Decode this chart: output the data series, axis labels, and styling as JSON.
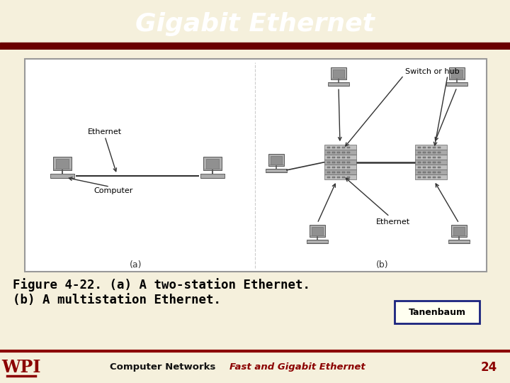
{
  "title": "Gigabit Ethernet",
  "title_bg": "#8B0000",
  "title_color": "#FFFFFF",
  "slide_bg": "#F5F0DC",
  "diagram_bg": "#F0EEE8",
  "diagram_inner_bg": "#FFFFFF",
  "caption_line1": "Figure 4-22. (a) A two-station Ethernet.",
  "caption_line2": "(b) A multistation Ethernet.",
  "caption_color": "#000000",
  "tanenbaum_text": "Tanenbaum",
  "tanenbaum_border": "#1A237E",
  "tanenbaum_bg": "#FFFFF0",
  "footer_bg": "#C0C0C0",
  "footer_text1": "Computer Networks",
  "footer_text2": "Fast and Gigabit Ethernet",
  "footer_text1_color": "#111111",
  "footer_text2_color": "#8B0000",
  "footer_num": "24",
  "footer_num_color": "#8B0000",
  "wpi_color": "#8B0000",
  "line_color": "#333333",
  "computer_body": "#AAAAAA",
  "computer_screen": "#888888",
  "switch_color1": "#BBBBBB",
  "switch_color2": "#999999"
}
